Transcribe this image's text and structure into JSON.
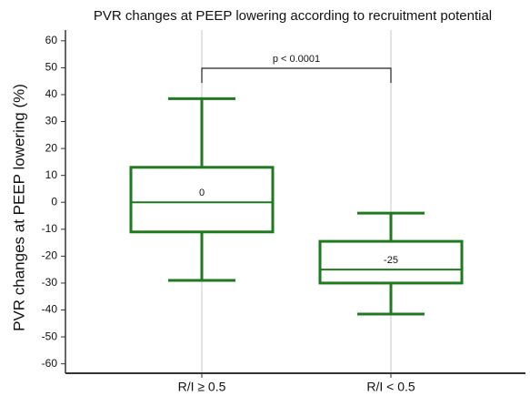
{
  "chart_data": {
    "type": "box",
    "title": "PVR changes at PEEP lowering according to recruitment potential",
    "y_label": "PVR changes at PEEP lowering (%)",
    "categories": [
      "R/I ≥ 0.5",
      "R/I < 0.5"
    ],
    "boxes": [
      {
        "whislo": -29,
        "q1": -11,
        "med": 0,
        "q3": 13,
        "whishi": 38.5
      },
      {
        "whislo": -41.5,
        "q1": -30,
        "med": -25,
        "q3": -14.5,
        "whishi": -4
      }
    ],
    "color": "#1f7a1f",
    "annotation": "p < 0.0001",
    "ylim": [
      -63.5,
      64
    ],
    "yticks": [
      -60,
      -50,
      -40,
      -30,
      -20,
      -10,
      0,
      10,
      20,
      30,
      40,
      50,
      60
    ],
    "vertical_grid": true
  }
}
